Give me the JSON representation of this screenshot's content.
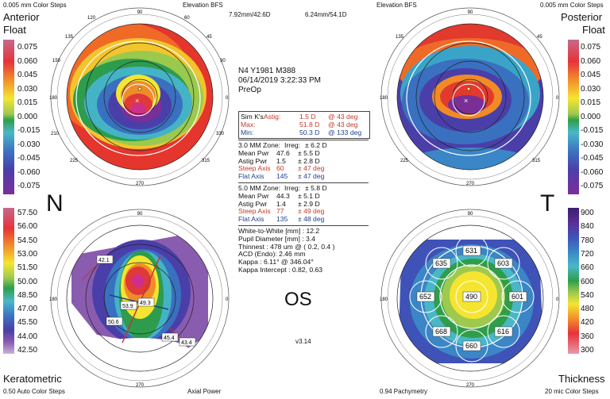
{
  "header": {
    "left_steps": "0.005 mm Color Steps",
    "center_left": "Elevation BFS",
    "val1": "7.92mm/42.6D",
    "val2": "6.24mm/54.1D",
    "center_right": "Elevation BFS",
    "right_steps": "0.005 mm Color Steps"
  },
  "maps": {
    "anterior": {
      "title": "Anterior",
      "sub": "Float"
    },
    "posterior": {
      "title": "Posterior",
      "sub": "Float"
    },
    "keratometric": {
      "title": "Keratometric",
      "footer_left": "0.50 Auto Color Steps",
      "footer_right": "Axial Power"
    },
    "thickness": {
      "title": "Thickness",
      "footer_left": "0.94 Pachymetry",
      "footer_right": "20 mic Color Steps"
    }
  },
  "side_labels": {
    "nasal": "N",
    "temporal": "T"
  },
  "float_scale": [
    "0.075",
    "0.060",
    "0.045",
    "0.030",
    "0.015",
    "0.000",
    "-0.015",
    "-0.030",
    "-0.045",
    "-0.060",
    "-0.075"
  ],
  "kerato_scale": [
    "57.50",
    "56.00",
    "54.50",
    "53.00",
    "51.50",
    "50.00",
    "48.50",
    "47.00",
    "45.50",
    "44.00",
    "42.50"
  ],
  "thick_scale": [
    "900",
    "840",
    "780",
    "720",
    "660",
    "600",
    "540",
    "480",
    "420",
    "360",
    "300"
  ],
  "patient": {
    "line1": "N4 Y1981 M388",
    "line2": "06/14/2019 3:22:33 PM",
    "line3": "PreOp"
  },
  "simk": {
    "label": "Sim K's",
    "astig_label": "Astig:",
    "astig_val": "1.5 D",
    "astig_deg": "@ 43 deg",
    "max_label": "Max:",
    "max_val": "51.8 D",
    "max_deg": "@ 43 deg",
    "min_label": "Min:",
    "min_val": "50.3 D",
    "min_deg": "@ 133 deg"
  },
  "zone3": {
    "title": "3.0 MM Zone:",
    "irreg_label": "Irreg:",
    "irreg_val": "± 6.2 D",
    "mean_label": "Mean Pwr",
    "mean_val": "47.6",
    "mean_pm": "± 5.5 D",
    "astig_label": "Astig Pwr",
    "astig_val": "1.5",
    "astig_pm": "± 2.8 D",
    "steep_label": "Steep Axis",
    "steep_val": "60",
    "steep_pm": "± 47 deg",
    "flat_label": "Flat Axis",
    "flat_val": "145",
    "flat_pm": "± 47 deg"
  },
  "zone5": {
    "title": "5.0 MM Zone:",
    "irreg_label": "Irreg:",
    "irreg_val": "± 5.8 D",
    "mean_label": "Mean Pwr",
    "mean_val": "44.3",
    "mean_pm": "± 5.1 D",
    "astig_label": "Astig Pwr",
    "astig_val": "1.4",
    "astig_pm": "± 2.9 D",
    "steep_label": "Steep Axis",
    "steep_val": "77",
    "steep_pm": "± 49 deg",
    "flat_label": "Flat Axis",
    "flat_val": "135",
    "flat_pm": "± 48 deg"
  },
  "measures": [
    "White-to-White [mm] : 12.2",
    "Pupil Diameter [mm] : 3.4",
    "Thinnest : 478 um @ ( 0.2, 0.4 )",
    "ACD (Endo): 2.46 mm",
    "Kappa : 6.11° @ 346.04°",
    "Kappa Intercept : 0.82, 0.63"
  ],
  "eye": "OS",
  "version": "v3.14",
  "pachy_values": [
    "631",
    "635",
    "603",
    "652",
    "490",
    "601",
    "668",
    "616",
    "660"
  ],
  "kerato_labels": [
    "42.1",
    "53.9",
    "49.3",
    "50.6",
    "45.4",
    "43.4"
  ],
  "degree_labels": [
    "90",
    "75",
    "60",
    "45",
    "30",
    "15",
    "0",
    "345",
    "330",
    "315",
    "300",
    "285",
    "270",
    "255",
    "240",
    "225",
    "210",
    "195",
    "180",
    "165",
    "150",
    "135",
    "120",
    "105"
  ],
  "colors": {
    "red": "#c0392b",
    "blue": "#1f3f8f"
  }
}
